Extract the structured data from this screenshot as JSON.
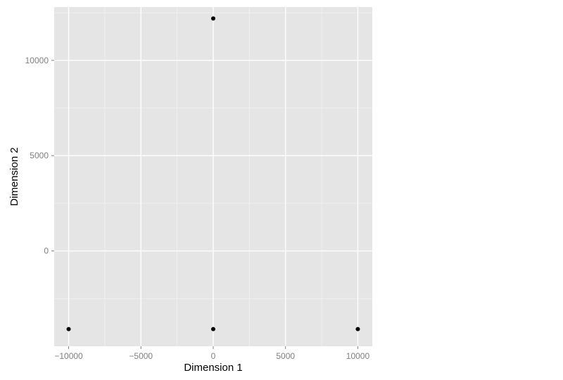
{
  "chart_data": {
    "type": "scatter",
    "xlabel": "Dimension 1",
    "ylabel": "Dimension 2",
    "xlim": [
      -11000,
      11000
    ],
    "ylim": [
      -5000,
      12800
    ],
    "x_ticks": [
      -10000,
      -5000,
      0,
      5000,
      10000
    ],
    "x_tick_labels": [
      "−10000",
      "−5000",
      "0",
      "5000",
      "10000"
    ],
    "y_ticks": [
      0,
      5000,
      10000
    ],
    "y_tick_labels": [
      "0",
      "5000",
      "10000"
    ],
    "grid": true,
    "points": [
      {
        "x": 0,
        "y": 12200
      },
      {
        "x": -10000,
        "y": -4100
      },
      {
        "x": 0,
        "y": -4100
      },
      {
        "x": 10000,
        "y": -4100
      }
    ],
    "colors": {
      "panel": "#e5e5e5",
      "grid_major": "#ffffff",
      "grid_minor": "#f2f2f2",
      "point": "#000000",
      "tick": "#7f7f7f"
    }
  }
}
